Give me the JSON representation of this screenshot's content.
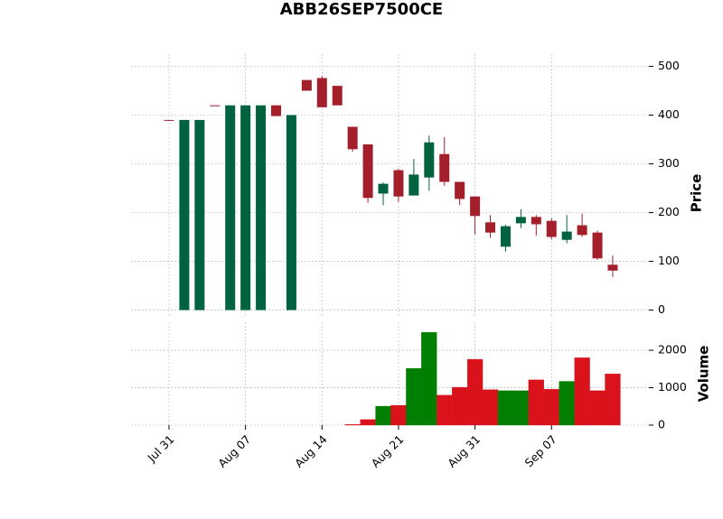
{
  "chart_data": {
    "type": "candlestick",
    "title": "ABB26SEP7500CE",
    "ylabel": "Price",
    "y2label": "Volume",
    "categories": [
      "Jul 31",
      null,
      null,
      null,
      null,
      "Aug 07",
      null,
      null,
      null,
      null,
      "Aug 14",
      null,
      null,
      null,
      null,
      "Aug 21",
      null,
      null,
      null,
      null,
      "Aug 31",
      null,
      null,
      null,
      null,
      "Sep 07",
      null,
      null,
      null,
      null
    ],
    "open": [
      390,
      0,
      0,
      420,
      0,
      0,
      0,
      420,
      0,
      472,
      476,
      460,
      376,
      340,
      239,
      287,
      235,
      272,
      320,
      263,
      233,
      180,
      130,
      178,
      191,
      183,
      144,
      174,
      159,
      93
    ],
    "high": [
      390,
      390,
      390,
      420,
      420,
      420,
      420,
      420,
      400,
      472,
      480,
      460,
      376,
      340,
      262,
      290,
      310,
      358,
      355,
      263,
      233,
      195,
      175,
      207,
      195,
      188,
      195,
      198,
      163,
      112
    ],
    "low": [
      390,
      0,
      0,
      420,
      0,
      0,
      0,
      398,
      0,
      450,
      416,
      420,
      325,
      220,
      215,
      222,
      235,
      245,
      255,
      215,
      155,
      148,
      120,
      168,
      153,
      145,
      137,
      150,
      103,
      68
    ],
    "close": [
      390,
      390,
      390,
      420,
      420,
      420,
      420,
      398,
      400,
      450,
      416,
      420,
      330,
      230,
      259,
      233,
      278,
      344,
      263,
      228,
      193,
      159,
      172,
      191,
      176,
      150,
      161,
      154,
      106,
      81
    ],
    "volume": [
      0,
      0,
      0,
      0,
      0,
      0,
      0,
      0,
      0,
      0,
      0,
      0,
      20,
      150,
      506,
      530,
      1518,
      2480,
      800,
      1012,
      1760,
      950,
      920,
      920,
      1210,
      960,
      1170,
      1800,
      920,
      1370
    ],
    "up_color": "#006340",
    "down_color": "#a31f2a",
    "volume_up_color": "#007f00",
    "volume_down_color": "#d9121b",
    "ylim": [
      -12,
      525
    ],
    "yticks": [
      0,
      100,
      200,
      300,
      400,
      500
    ],
    "y2lim": [
      0,
      2750
    ],
    "y2ticks": [
      0,
      1000,
      2000
    ],
    "grid": true
  }
}
